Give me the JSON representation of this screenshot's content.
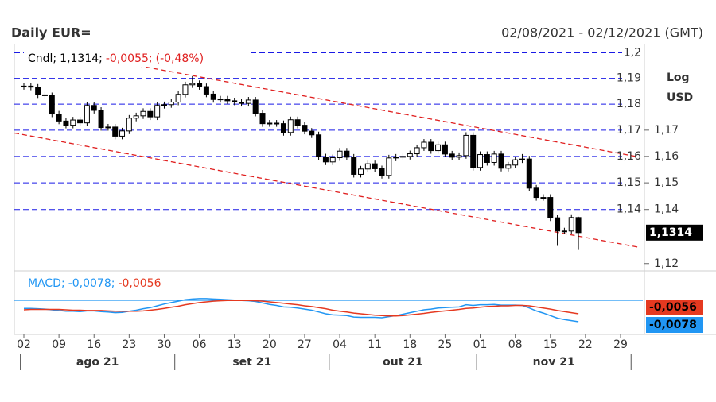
{
  "header": {
    "title": "Daily EUR=",
    "range": "02/08/2021 - 02/12/2021 (GMT)"
  },
  "chart_data": [
    {
      "type": "candlestick",
      "legend": [
        "Cndl;",
        "1,1314;",
        "-0,0055;",
        "(-0,48%)"
      ],
      "legend_colors": [
        "#000000",
        "#000000",
        "#e02020",
        "#e02020"
      ],
      "categories": [
        "02",
        null,
        null,
        null,
        null,
        "09",
        null,
        null,
        null,
        null,
        "16",
        null,
        null,
        null,
        null,
        "23",
        null,
        null,
        null,
        null,
        "30",
        null,
        null,
        null,
        null,
        "06",
        null,
        null,
        null,
        null,
        "13",
        null,
        null,
        null,
        null,
        "20",
        null,
        null,
        null,
        null,
        "27",
        null,
        null,
        null,
        null,
        "04",
        null,
        null,
        null,
        null,
        "11",
        null,
        null,
        null,
        null,
        "18",
        null,
        null,
        null,
        null,
        "25",
        null,
        null,
        null,
        null,
        "01",
        null,
        null,
        null,
        null,
        "08",
        null,
        null,
        null,
        null,
        "15",
        null,
        null,
        null,
        null,
        "22",
        null,
        null,
        null,
        null,
        "29"
      ],
      "months": [
        {
          "label": "ago 21",
          "start": 0
        },
        {
          "label": "set 21",
          "start": 22
        },
        {
          "label": "out 21",
          "start": 44
        },
        {
          "label": "nov 21",
          "start": 65
        }
      ],
      "months_end": 87,
      "open": [
        1.1868,
        1.187,
        1.1866,
        1.1836,
        1.1833,
        1.1762,
        1.1735,
        1.1719,
        1.1739,
        1.1728,
        1.1795,
        1.1776,
        1.171,
        1.1712,
        1.1677,
        1.1697,
        1.1746,
        1.1755,
        1.1772,
        1.1751,
        1.1795,
        1.1798,
        1.1808,
        1.1838,
        1.1875,
        1.188,
        1.1868,
        1.1839,
        1.1818,
        1.182,
        1.1813,
        1.1808,
        1.1803,
        1.1816,
        1.1765,
        1.1725,
        1.1727,
        1.1725,
        1.1691,
        1.174,
        1.1719,
        1.1696,
        1.1682,
        1.1598,
        1.1579,
        1.1595,
        1.162,
        1.1597,
        1.1532,
        1.1552,
        1.1572,
        1.1553,
        1.1528,
        1.1594,
        1.1597,
        1.16,
        1.161,
        1.1633,
        1.1654,
        1.1622,
        1.1644,
        1.1609,
        1.1597,
        1.1603,
        1.168,
        1.1558,
        1.1607,
        1.1577,
        1.1609,
        1.1555,
        1.1567,
        1.1587,
        1.159,
        1.148,
        1.1445,
        1.1445,
        1.1369,
        1.132,
        1.132,
        1.137,
        null,
        null,
        null,
        null,
        null,
        null
      ],
      "high": [
        1.1882,
        1.1882,
        1.1878,
        1.1848,
        1.1845,
        1.1774,
        1.1747,
        1.1751,
        1.1751,
        1.1807,
        1.1807,
        1.1788,
        1.1724,
        1.1724,
        1.1709,
        1.1758,
        1.1767,
        1.1784,
        1.1784,
        1.1807,
        1.181,
        1.182,
        1.185,
        1.1887,
        1.1909,
        1.1892,
        1.188,
        1.1851,
        1.1832,
        1.1832,
        1.1825,
        1.182,
        1.1828,
        1.1828,
        1.1777,
        1.1739,
        1.1739,
        1.1737,
        1.1752,
        1.1752,
        1.1731,
        1.1708,
        1.1694,
        1.161,
        1.1607,
        1.1632,
        1.1632,
        1.1609,
        1.1564,
        1.1584,
        1.1584,
        1.1565,
        1.1606,
        1.1609,
        1.1612,
        1.1622,
        1.1645,
        1.1666,
        1.1666,
        1.1656,
        1.1656,
        1.1621,
        1.1615,
        1.1692,
        1.1692,
        1.1619,
        1.1619,
        1.1621,
        1.1621,
        1.1579,
        1.1599,
        1.1609,
        1.1602,
        1.1492,
        1.1457,
        1.1457,
        1.1381,
        1.1332,
        1.1382,
        1.1373,
        null,
        null,
        null,
        null,
        null,
        null
      ],
      "low": [
        1.1856,
        1.1854,
        1.1824,
        1.1821,
        1.175,
        1.1723,
        1.1707,
        1.1707,
        1.1716,
        1.1716,
        1.1764,
        1.1698,
        1.1698,
        1.1665,
        1.1665,
        1.1685,
        1.1734,
        1.1743,
        1.1739,
        1.1739,
        1.1783,
        1.1786,
        1.1796,
        1.1826,
        1.1863,
        1.1856,
        1.1827,
        1.1806,
        1.1806,
        1.1801,
        1.1796,
        1.1791,
        1.1791,
        1.1753,
        1.1713,
        1.1713,
        1.1713,
        1.1679,
        1.1679,
        1.1707,
        1.1684,
        1.167,
        1.1586,
        1.1567,
        1.1567,
        1.1583,
        1.1585,
        1.152,
        1.152,
        1.154,
        1.1541,
        1.1516,
        1.1516,
        1.1582,
        1.1585,
        1.1588,
        1.1598,
        1.1621,
        1.161,
        1.161,
        1.1597,
        1.1585,
        1.1585,
        1.1591,
        1.1546,
        1.1546,
        1.1565,
        1.1565,
        1.1543,
        1.1543,
        1.1555,
        1.1575,
        1.1468,
        1.1433,
        1.1433,
        1.1357,
        1.1265,
        1.1308,
        1.1308,
        1.125,
        null,
        null,
        null,
        null,
        null,
        null
      ],
      "close": [
        1.187,
        1.1866,
        1.1836,
        1.1833,
        1.1762,
        1.1735,
        1.1719,
        1.1739,
        1.1728,
        1.1795,
        1.1776,
        1.171,
        1.1712,
        1.1677,
        1.1697,
        1.1746,
        1.1755,
        1.1772,
        1.1751,
        1.1795,
        1.1798,
        1.1808,
        1.1838,
        1.1875,
        1.188,
        1.1868,
        1.1839,
        1.1818,
        1.182,
        1.1813,
        1.1808,
        1.1803,
        1.1816,
        1.1765,
        1.1725,
        1.1727,
        1.1725,
        1.1691,
        1.174,
        1.1719,
        1.1696,
        1.1682,
        1.1598,
        1.1579,
        1.1595,
        1.162,
        1.1597,
        1.1532,
        1.1552,
        1.1572,
        1.1553,
        1.1528,
        1.1594,
        1.1597,
        1.16,
        1.161,
        1.1633,
        1.1654,
        1.1622,
        1.1644,
        1.1609,
        1.1597,
        1.1603,
        1.168,
        1.1558,
        1.1607,
        1.1577,
        1.1609,
        1.1555,
        1.1567,
        1.1587,
        1.159,
        1.148,
        1.1445,
        1.1445,
        1.1369,
        1.132,
        1.132,
        1.137,
        1.1314,
        null,
        null,
        null,
        null,
        null,
        null
      ],
      "up_color": "#ffffff",
      "down_color": "#000000",
      "ylim": [
        1.1176,
        1.2036
      ],
      "log_scale": true,
      "yticks": [
        {
          "value": 1.17,
          "label": "1,17"
        },
        {
          "value": 1.16,
          "label": "1,16"
        },
        {
          "value": 1.15,
          "label": "1,15"
        },
        {
          "value": 1.14,
          "label": "1,14"
        },
        {
          "value": 1.12,
          "label": "1,12"
        }
      ],
      "levels": [
        {
          "value": 1.2,
          "label": "1,2"
        },
        {
          "value": 1.19,
          "label": "1,19"
        },
        {
          "value": 1.18,
          "label": "1,18"
        },
        {
          "value": 1.17,
          "label": "1,17"
        },
        {
          "value": 1.16,
          "label": "1,16"
        },
        {
          "value": 1.15,
          "label": "1,15"
        },
        {
          "value": 1.14,
          "label": "1,14"
        }
      ],
      "level_color": "#1a1ae6",
      "axis_title": [
        "Log",
        "USD"
      ],
      "price_label": {
        "value": 1.1314,
        "label": "1,1314"
      },
      "trendlines": [
        {
          "x1": 14,
          "y1": 1.1961,
          "x2": 87.4,
          "y2": 1.1599
        },
        {
          "x1": -1.35,
          "y1": 1.1689,
          "x2": 87.4,
          "y2": 1.1261
        }
      ],
      "trend_color": "#e02020"
    },
    {
      "type": "line",
      "legend": [
        "MACD;",
        "-0,0078;",
        "-0,0056"
      ],
      "ylim": [
        -0.0111,
        0.0054
      ],
      "level": -0.0019,
      "series": [
        {
          "color": "#2196f3",
          "last_label": {
            "value": -0.0078,
            "label": "-0,0078"
          },
          "values": [
            -0.0041,
            -0.0041,
            -0.0042,
            -0.0043,
            -0.0045,
            -0.0047,
            -0.0049,
            -0.0049,
            -0.005,
            -0.0048,
            -0.0048,
            -0.005,
            -0.0051,
            -0.0053,
            -0.0052,
            -0.0049,
            -0.0046,
            -0.0042,
            -0.0039,
            -0.0034,
            -0.0029,
            -0.0025,
            -0.0021,
            -0.0017,
            -0.0015,
            -0.0014,
            -0.0014,
            -0.0015,
            -0.0016,
            -0.0017,
            -0.0018,
            -0.0019,
            -0.002,
            -0.0022,
            -0.0026,
            -0.003,
            -0.0033,
            -0.0037,
            -0.0038,
            -0.004,
            -0.0043,
            -0.0046,
            -0.0051,
            -0.0056,
            -0.0059,
            -0.006,
            -0.0061,
            -0.0065,
            -0.0066,
            -0.0066,
            -0.0066,
            -0.0067,
            -0.0064,
            -0.0061,
            -0.0057,
            -0.0053,
            -0.0049,
            -0.0045,
            -0.0043,
            -0.004,
            -0.0039,
            -0.0038,
            -0.0037,
            -0.0031,
            -0.0033,
            -0.0031,
            -0.0031,
            -0.003,
            -0.0032,
            -0.0032,
            -0.0032,
            -0.0033,
            -0.004,
            -0.0048,
            -0.0054,
            -0.0061,
            -0.0068,
            -0.0072,
            -0.0075,
            -0.0078,
            null,
            null,
            null,
            null,
            null,
            null
          ]
        },
        {
          "color": "#e53920",
          "last_label": {
            "value": -0.0056,
            "label": "-0,0056"
          },
          "values": [
            -0.0045,
            -0.0044,
            -0.0044,
            -0.0044,
            -0.0044,
            -0.0044,
            -0.0045,
            -0.0046,
            -0.0046,
            -0.0047,
            -0.0047,
            -0.0047,
            -0.0048,
            -0.0049,
            -0.0049,
            -0.0049,
            -0.0049,
            -0.0048,
            -0.0046,
            -0.0044,
            -0.0041,
            -0.0038,
            -0.0035,
            -0.0031,
            -0.0028,
            -0.0025,
            -0.0023,
            -0.0021,
            -0.002,
            -0.0019,
            -0.0019,
            -0.0019,
            -0.0019,
            -0.002,
            -0.0021,
            -0.0023,
            -0.0025,
            -0.0027,
            -0.0029,
            -0.0031,
            -0.0034,
            -0.0036,
            -0.0039,
            -0.0042,
            -0.0046,
            -0.0049,
            -0.0051,
            -0.0054,
            -0.0056,
            -0.0058,
            -0.006,
            -0.0061,
            -0.0062,
            -0.0062,
            -0.0061,
            -0.0059,
            -0.0057,
            -0.0055,
            -0.0052,
            -0.005,
            -0.0048,
            -0.0046,
            -0.0044,
            -0.0041,
            -0.004,
            -0.0038,
            -0.0036,
            -0.0035,
            -0.0034,
            -0.0034,
            -0.0033,
            -0.0033,
            -0.0034,
            -0.0037,
            -0.004,
            -0.0043,
            -0.0047,
            -0.005,
            -0.0053,
            -0.0056,
            null,
            null,
            null,
            null,
            null,
            null
          ]
        }
      ]
    }
  ]
}
